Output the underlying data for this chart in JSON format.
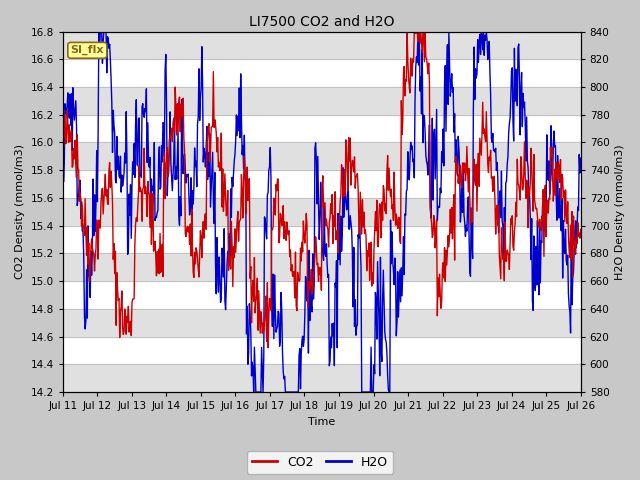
{
  "title": "LI7500 CO2 and H2O",
  "xlabel": "Time",
  "ylabel_left": "CO2 Density (mmol/m3)",
  "ylabel_right": "H2O Density (mmol/m3)",
  "ylim_left": [
    14.2,
    16.8
  ],
  "ylim_right": [
    580,
    840
  ],
  "yticks_left": [
    14.2,
    14.4,
    14.6,
    14.8,
    15.0,
    15.2,
    15.4,
    15.6,
    15.8,
    16.0,
    16.2,
    16.4,
    16.6,
    16.8
  ],
  "yticks_right": [
    580,
    600,
    620,
    640,
    660,
    680,
    700,
    720,
    740,
    760,
    780,
    800,
    820,
    840
  ],
  "xtick_labels": [
    "Jul 11",
    "Jul 12",
    "Jul 13",
    "Jul 14",
    "Jul 15",
    "Jul 16",
    "Jul 17",
    "Jul 18",
    "Jul 19",
    "Jul 20",
    "Jul 21",
    "Jul 22",
    "Jul 23",
    "Jul 24",
    "Jul 25",
    "Jul 26"
  ],
  "co2_color": "#cc0000",
  "h2o_color": "#0000cc",
  "legend_co2": "CO2",
  "legend_h2o": "H2O",
  "si_flx_label": "SI_flx",
  "si_flx_bg": "#ffff99",
  "si_flx_border": "#8b6914",
  "background_color": "#c8c8c8",
  "plot_bg": "#ffffff",
  "alt_band_color": "#e0e0e0",
  "line_width": 1.0,
  "title_fontsize": 10,
  "axis_fontsize": 8,
  "tick_fontsize": 7.5
}
